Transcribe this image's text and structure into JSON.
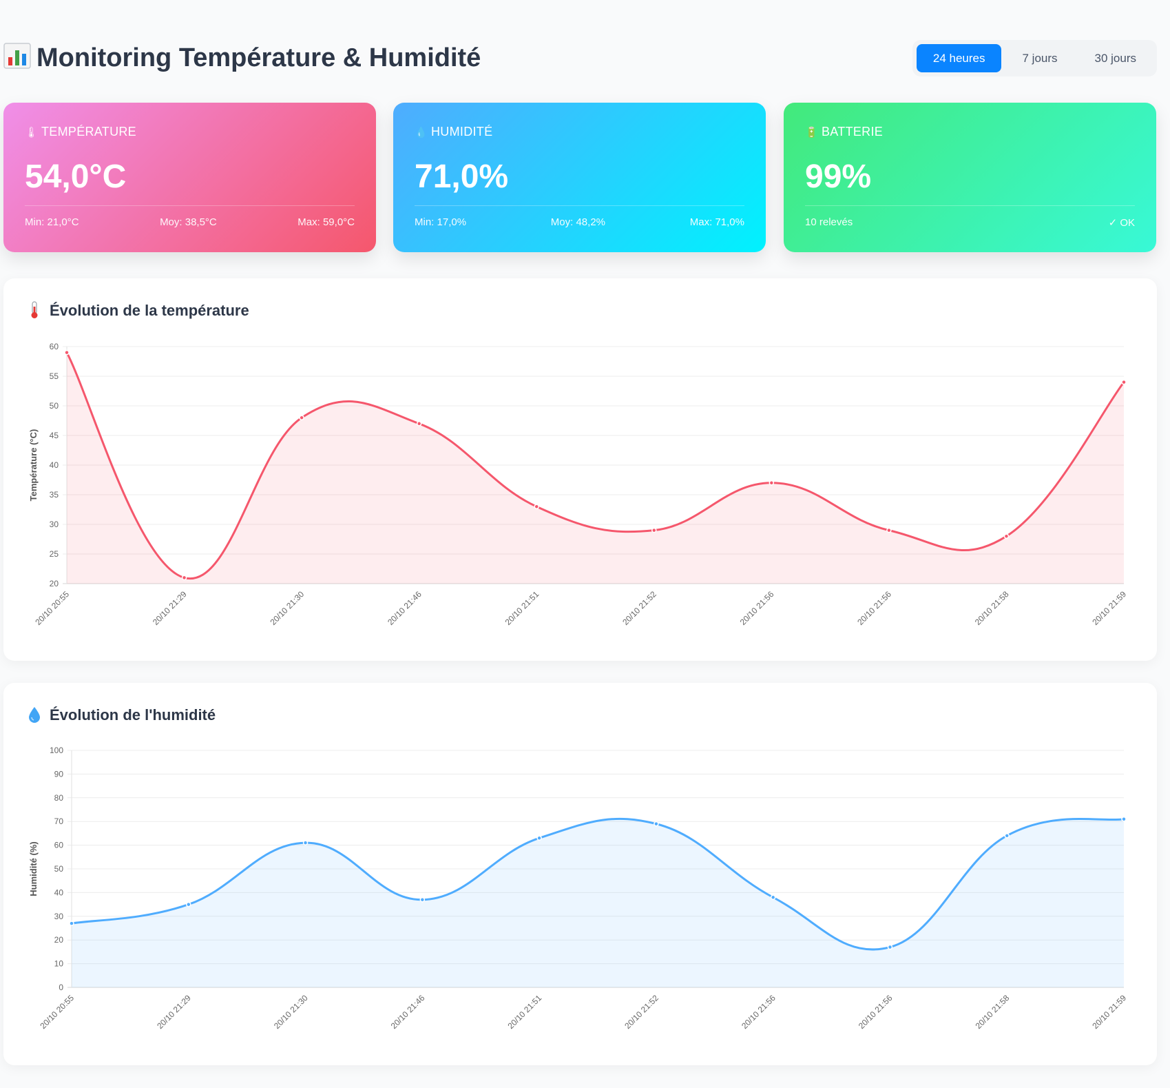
{
  "header": {
    "title": "Monitoring Température & Humidité",
    "title_icon": "bar-chart-icon",
    "ranges": [
      {
        "label": "24 heures",
        "active": true
      },
      {
        "label": "7 jours",
        "active": false
      },
      {
        "label": "30 jours",
        "active": false
      }
    ]
  },
  "cards": {
    "temperature": {
      "label": "TEMPÉRATURE",
      "icon": "thermometer-icon",
      "value": "54,0°C",
      "min": "Min: 21,0°C",
      "avg": "Moy: 38,5°C",
      "max": "Max: 59,0°C"
    },
    "humidity": {
      "label": "HUMIDITÉ",
      "icon": "droplet-icon",
      "value": "71,0%",
      "min": "Min: 17,0%",
      "avg": "Moy: 48,2%",
      "max": "Max: 71,0%"
    },
    "battery": {
      "label": "BATTERIE",
      "icon": "battery-icon",
      "value": "99%",
      "count": "10 relevés",
      "status": "✓ OK"
    }
  },
  "charts": {
    "temperature_title": "Évolution de la température",
    "humidity_title": "Évolution de l'humidité"
  },
  "colors": {
    "temperature": "#f5576c",
    "humidity": "#4facfe",
    "active_tab": "#0a84ff"
  },
  "chart_data": [
    {
      "id": "temperature",
      "type": "line",
      "title": "Évolution de la température",
      "ylabel": "Température (°C)",
      "xlabel": "",
      "ylim": [
        20,
        60
      ],
      "yticks": [
        20,
        25,
        30,
        35,
        40,
        45,
        50,
        55,
        60
      ],
      "grid": true,
      "categories": [
        "20/10 20:55",
        "20/10 21:29",
        "20/10 21:30",
        "20/10 21:46",
        "20/10 21:51",
        "20/10 21:52",
        "20/10 21:56",
        "20/10 21:56",
        "20/10 21:58",
        "20/10 21:59"
      ],
      "series": [
        {
          "values": [
            59,
            21,
            48,
            47,
            33,
            29,
            37,
            29,
            28,
            54
          ],
          "color": "#f5576c"
        }
      ]
    },
    {
      "id": "humidity",
      "type": "line",
      "title": "Évolution de l'humidité",
      "ylabel": "Humidité (%)",
      "xlabel": "",
      "ylim": [
        0,
        100
      ],
      "yticks": [
        0,
        10,
        20,
        30,
        40,
        50,
        60,
        70,
        80,
        90,
        100
      ],
      "grid": true,
      "categories": [
        "20/10 20:55",
        "20/10 21:29",
        "20/10 21:30",
        "20/10 21:46",
        "20/10 21:51",
        "20/10 21:52",
        "20/10 21:56",
        "20/10 21:56",
        "20/10 21:58",
        "20/10 21:59"
      ],
      "series": [
        {
          "values": [
            27,
            35,
            61,
            37,
            63,
            69,
            38,
            17,
            64,
            71
          ],
          "color": "#4facfe"
        }
      ]
    }
  ]
}
